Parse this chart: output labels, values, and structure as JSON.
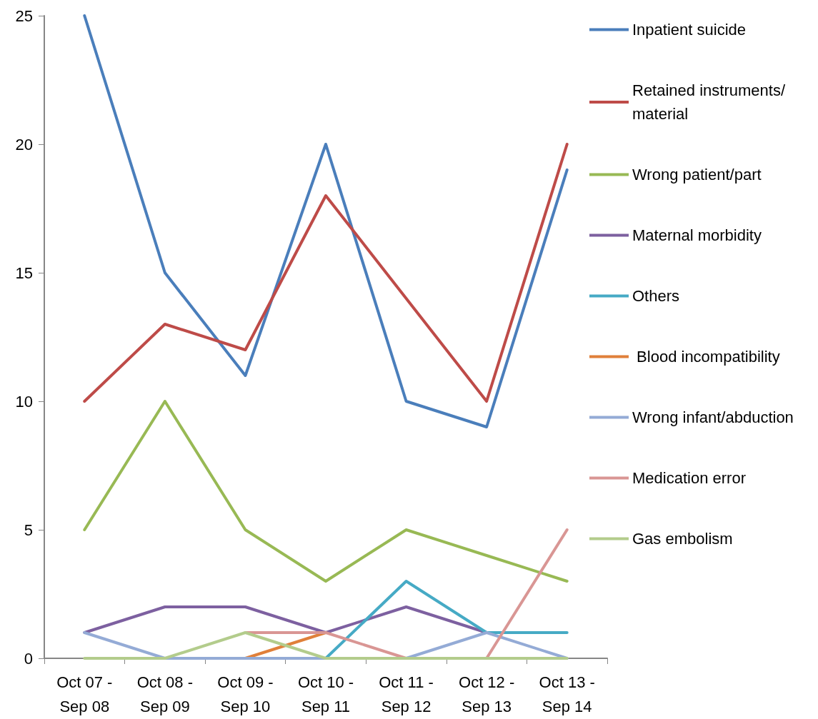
{
  "chart_data": {
    "type": "line",
    "categories": [
      "Oct 07 - Sep 08",
      "Oct 08 - Sep 09",
      "Oct 09 - Sep 10",
      "Oct 10 - Sep 11",
      "Oct 11 - Sep 12",
      "Oct 12 - Sep 13",
      "Oct 13 - Sep 14"
    ],
    "series": [
      {
        "name": "Inpatient suicide",
        "color": "#4a7ebb",
        "values": [
          25,
          15,
          11,
          20,
          10,
          9,
          19
        ]
      },
      {
        "name": "Retained instruments/material",
        "color": "#be4b48",
        "values": [
          10,
          13,
          12,
          18,
          14,
          10,
          20
        ]
      },
      {
        "name": "Wrong patient/part",
        "color": "#98b954",
        "values": [
          5,
          10,
          5,
          3,
          5,
          4,
          3
        ]
      },
      {
        "name": "Maternal morbidity",
        "color": "#7d60a0",
        "values": [
          1,
          2,
          2,
          1,
          2,
          1,
          null
        ]
      },
      {
        "name": "Others",
        "color": "#46aac5",
        "values": [
          null,
          null,
          null,
          0,
          3,
          1,
          1
        ]
      },
      {
        "name": " Blood incompatibility",
        "color": "#e0803a",
        "values": [
          null,
          null,
          0,
          1,
          null,
          null,
          null
        ]
      },
      {
        "name": "Wrong infant/abduction",
        "color": "#94abd6",
        "values": [
          1,
          0,
          0,
          0,
          0,
          1,
          0
        ]
      },
      {
        "name": "Medication error",
        "color": "#d99694",
        "values": [
          null,
          null,
          1,
          1,
          0,
          0,
          5
        ]
      },
      {
        "name": "Gas embolism",
        "color": "#b3cc8c",
        "values": [
          0,
          0,
          1,
          0,
          0,
          0,
          0
        ]
      }
    ],
    "ylim": [
      0,
      25
    ],
    "yticks": [
      0,
      5,
      10,
      15,
      20,
      25
    ],
    "grid": false,
    "legend": "right",
    "marker": "none",
    "line_style": "solid"
  }
}
